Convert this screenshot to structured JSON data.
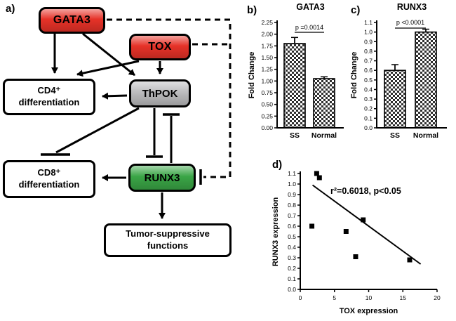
{
  "panels": {
    "a": "a)",
    "b": "b)",
    "c": "c)",
    "d": "d)"
  },
  "diagram": {
    "nodes": {
      "gata3": "GATA3",
      "tox": "TOX",
      "thpok": "ThPOK",
      "runx3": "RUNX3",
      "cd4_line1": "CD4⁺",
      "cd4_line2": "differentiation",
      "cd8_line1": "CD8⁺",
      "cd8_line2": "differentiation",
      "tumor_line1": "Tumor-suppressive",
      "tumor_line2": "functions"
    },
    "colors": {
      "red": "#e63228",
      "grey": "#bcbcbe",
      "green": "#3aa546"
    }
  },
  "chart_data": [
    {
      "id": "gata3_bar",
      "type": "bar",
      "title": "GATA3",
      "ylabel": "Fold Change",
      "categories": [
        "SS",
        "Normal"
      ],
      "values": [
        1.8,
        1.05
      ],
      "errors": [
        0.13,
        0.04
      ],
      "ylim": [
        0,
        2.25
      ],
      "ytick_step": 0.25,
      "ytick_decimals": 2,
      "significance": "p =0.0014"
    },
    {
      "id": "runx3_bar",
      "type": "bar",
      "title": "RUNX3",
      "ylabel": "Fold Change",
      "categories": [
        "SS",
        "Normal"
      ],
      "values": [
        0.6,
        1.0
      ],
      "errors": [
        0.06,
        0.03
      ],
      "ylim": [
        0,
        1.1
      ],
      "ytick_step": 0.1,
      "ytick_decimals": 1,
      "significance": "p <0.0001"
    },
    {
      "id": "tox_runx3_scatter",
      "type": "scatter",
      "xlabel": "TOX expression",
      "ylabel": "RUNX3 expression",
      "xlim": [
        0,
        20
      ],
      "ylim": [
        0,
        1.1
      ],
      "xtick_step": 5,
      "ytick_step": 0.1,
      "xtick_decimals": 0,
      "ytick_decimals": 1,
      "annotation": "r²=0.6018, p<0.05",
      "points": [
        [
          1.7,
          0.6
        ],
        [
          2.4,
          1.1
        ],
        [
          2.8,
          1.06
        ],
        [
          6.7,
          0.55
        ],
        [
          8.1,
          0.31
        ],
        [
          9.2,
          0.66
        ],
        [
          16,
          0.28
        ]
      ],
      "trendline": {
        "x1": 1.8,
        "y1": 0.99,
        "x2": 17.6,
        "y2": 0.24
      }
    }
  ]
}
